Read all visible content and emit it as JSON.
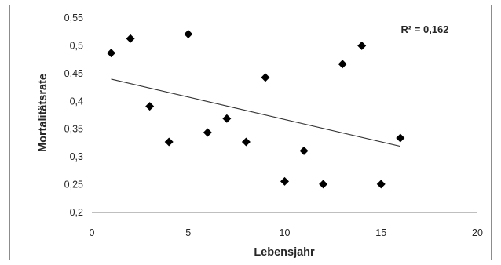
{
  "chart_data": {
    "type": "scatter",
    "xlabel": "Lebensjahr",
    "ylabel": "Mortalitätsrate",
    "xlim": [
      0,
      20
    ],
    "ylim": [
      0.2,
      0.55
    ],
    "x_ticks": [
      0,
      5,
      10,
      15,
      20
    ],
    "x_tick_labels": [
      "0",
      "5",
      "10",
      "15",
      "20"
    ],
    "y_ticks": [
      0.2,
      0.25,
      0.3,
      0.35,
      0.4,
      0.45,
      0.5,
      0.55
    ],
    "y_tick_labels": [
      "0,2",
      "0,25",
      "0,3",
      "0,35",
      "0,4",
      "0,45",
      "0,5",
      "0,55"
    ],
    "grid": false,
    "marker": "diamond",
    "marker_color": "#000000",
    "trendline_color": "#333333",
    "points": [
      {
        "x": 1,
        "y": 0.487
      },
      {
        "x": 2,
        "y": 0.513
      },
      {
        "x": 3,
        "y": 0.391
      },
      {
        "x": 4,
        "y": 0.327
      },
      {
        "x": 5,
        "y": 0.521
      },
      {
        "x": 6,
        "y": 0.344
      },
      {
        "x": 7,
        "y": 0.369
      },
      {
        "x": 8,
        "y": 0.327
      },
      {
        "x": 9,
        "y": 0.443
      },
      {
        "x": 10,
        "y": 0.256
      },
      {
        "x": 11,
        "y": 0.311
      },
      {
        "x": 12,
        "y": 0.251
      },
      {
        "x": 13,
        "y": 0.467
      },
      {
        "x": 14,
        "y": 0.5
      },
      {
        "x": 15,
        "y": 0.251
      },
      {
        "x": 16,
        "y": 0.334
      }
    ],
    "trendline": {
      "x_start": 1,
      "y_start": 0.44,
      "x_end": 16,
      "y_end": 0.319
    },
    "annotation": "R² = 0,162"
  }
}
